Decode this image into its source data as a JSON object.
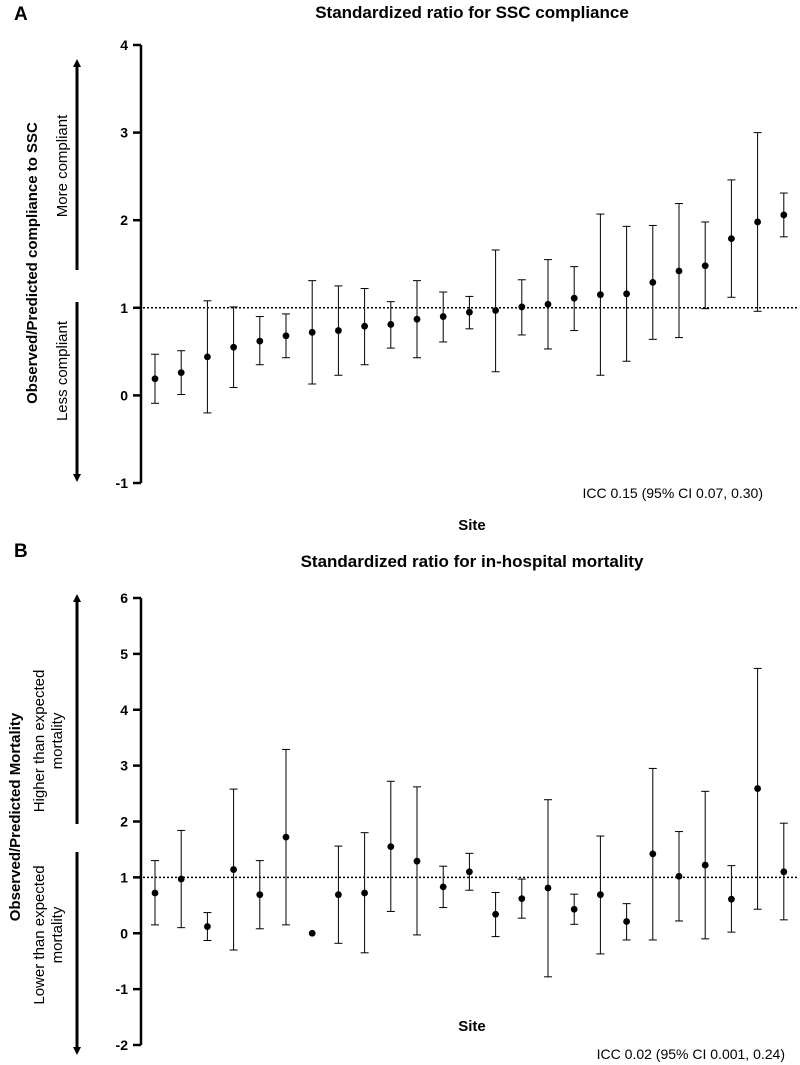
{
  "chart_data": [
    {
      "panel": "A",
      "type": "scatter",
      "title": "Standardized ratio for SSC compliance",
      "xlabel": "Site",
      "ylabel": "Observed/Predicted compliance to SSC",
      "ylim": [
        -1,
        4
      ],
      "yticks": [
        "4",
        "3",
        "2",
        "1",
        "0",
        "-1"
      ],
      "reference_line": 1,
      "annotation": "ICC 0.15 (95% CI 0.07, 0.30)",
      "upper_label": "More compliant",
      "lower_label": "Less compliant",
      "points": [
        {
          "y": 0.19,
          "lo": -0.09,
          "hi": 0.47
        },
        {
          "y": 0.26,
          "lo": 0.01,
          "hi": 0.51
        },
        {
          "y": 0.44,
          "lo": -0.2,
          "hi": 1.08
        },
        {
          "y": 0.55,
          "lo": 0.09,
          "hi": 1.01
        },
        {
          "y": 0.62,
          "lo": 0.35,
          "hi": 0.9
        },
        {
          "y": 0.68,
          "lo": 0.43,
          "hi": 0.93
        },
        {
          "y": 0.72,
          "lo": 0.13,
          "hi": 1.31
        },
        {
          "y": 0.74,
          "lo": 0.23,
          "hi": 1.25
        },
        {
          "y": 0.79,
          "lo": 0.35,
          "hi": 1.22
        },
        {
          "y": 0.81,
          "lo": 0.54,
          "hi": 1.07
        },
        {
          "y": 0.87,
          "lo": 0.43,
          "hi": 1.31
        },
        {
          "y": 0.9,
          "lo": 0.61,
          "hi": 1.18
        },
        {
          "y": 0.95,
          "lo": 0.76,
          "hi": 1.13
        },
        {
          "y": 0.97,
          "lo": 0.27,
          "hi": 1.66
        },
        {
          "y": 1.01,
          "lo": 0.69,
          "hi": 1.32
        },
        {
          "y": 1.04,
          "lo": 0.53,
          "hi": 1.55
        },
        {
          "y": 1.11,
          "lo": 0.74,
          "hi": 1.47
        },
        {
          "y": 1.15,
          "lo": 0.23,
          "hi": 2.07
        },
        {
          "y": 1.16,
          "lo": 0.39,
          "hi": 1.93
        },
        {
          "y": 1.29,
          "lo": 0.64,
          "hi": 1.94
        },
        {
          "y": 1.42,
          "lo": 0.66,
          "hi": 2.19
        },
        {
          "y": 1.48,
          "lo": 0.99,
          "hi": 1.98
        },
        {
          "y": 1.79,
          "lo": 1.12,
          "hi": 2.46
        },
        {
          "y": 1.98,
          "lo": 0.96,
          "hi": 3.0
        },
        {
          "y": 2.06,
          "lo": 1.81,
          "hi": 2.31
        }
      ]
    },
    {
      "panel": "B",
      "type": "scatter",
      "title": "Standardized ratio for in-hospital mortality",
      "xlabel": "Site",
      "ylabel": "Observed/Predicted Mortality",
      "ylim": [
        -2,
        6
      ],
      "yticks": [
        "6",
        "5",
        "4",
        "3",
        "2",
        "1",
        "0",
        "-1",
        "-2"
      ],
      "reference_line": 1,
      "annotation": "ICC 0.02 (95% CI 0.001, 0.24)",
      "upper_label_line1": "Higher than expected",
      "upper_label_line2": "mortality",
      "lower_label_line1": "Lower than expected",
      "lower_label_line2": "mortality",
      "points": [
        {
          "y": 0.72,
          "lo": 0.15,
          "hi": 1.3
        },
        {
          "y": 0.97,
          "lo": 0.1,
          "hi": 1.84
        },
        {
          "y": 0.12,
          "lo": -0.13,
          "hi": 0.37
        },
        {
          "y": 1.14,
          "lo": -0.3,
          "hi": 2.58
        },
        {
          "y": 0.69,
          "lo": 0.08,
          "hi": 1.3
        },
        {
          "y": 1.72,
          "lo": 0.15,
          "hi": 3.29
        },
        {
          "y": 0.0,
          "lo": null,
          "hi": null
        },
        {
          "y": 0.69,
          "lo": -0.18,
          "hi": 1.56
        },
        {
          "y": 0.72,
          "lo": -0.35,
          "hi": 1.8
        },
        {
          "y": 1.55,
          "lo": 0.39,
          "hi": 2.72
        },
        {
          "y": 1.29,
          "lo": -0.03,
          "hi": 2.62
        },
        {
          "y": 0.83,
          "lo": 0.46,
          "hi": 1.2
        },
        {
          "y": 1.1,
          "lo": 0.77,
          "hi": 1.43
        },
        {
          "y": 0.34,
          "lo": -0.06,
          "hi": 0.73
        },
        {
          "y": 0.62,
          "lo": 0.27,
          "hi": 0.97
        },
        {
          "y": 0.81,
          "lo": -0.78,
          "hi": 2.39
        },
        {
          "y": 0.43,
          "lo": 0.16,
          "hi": 0.7
        },
        {
          "y": 0.69,
          "lo": -0.37,
          "hi": 1.74
        },
        {
          "y": 0.21,
          "lo": -0.12,
          "hi": 0.53
        },
        {
          "y": 1.42,
          "lo": -0.12,
          "hi": 2.95
        },
        {
          "y": 1.02,
          "lo": 0.22,
          "hi": 1.82
        },
        {
          "y": 1.22,
          "lo": -0.1,
          "hi": 2.54
        },
        {
          "y": 0.61,
          "lo": 0.02,
          "hi": 1.21
        },
        {
          "y": 2.59,
          "lo": 0.43,
          "hi": 4.74
        },
        {
          "y": 1.1,
          "lo": 0.24,
          "hi": 1.97
        }
      ]
    }
  ]
}
